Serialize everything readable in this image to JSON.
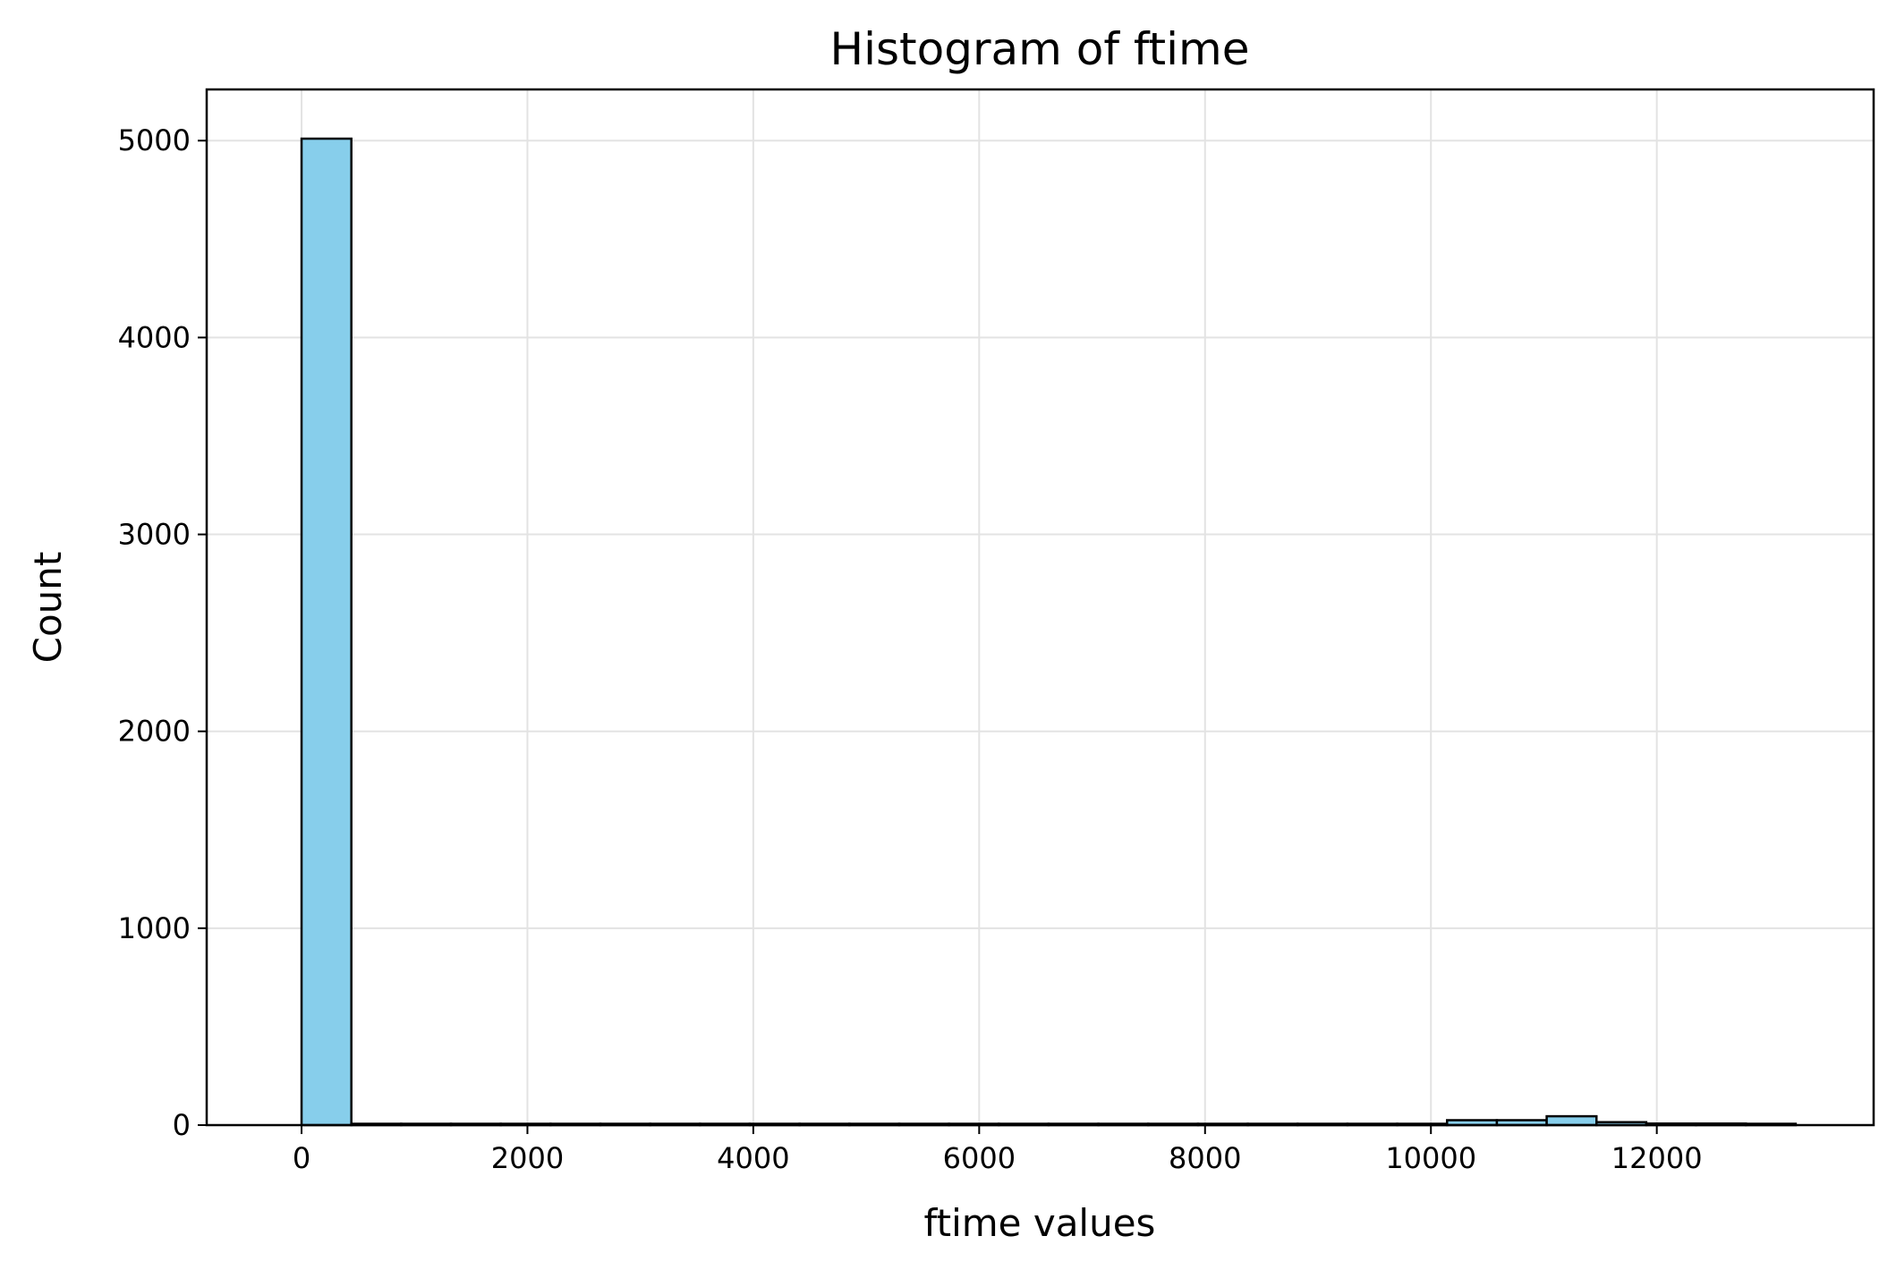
{
  "chart_data": {
    "type": "bar",
    "title": "Histogram of ftime",
    "xlabel": "ftime values",
    "ylabel": "Count",
    "xlim": [
      -840,
      13920
    ],
    "ylim": [
      0,
      5260
    ],
    "xticks": [
      0,
      2000,
      4000,
      6000,
      8000,
      10000,
      12000
    ],
    "xtick_labels": [
      "0",
      "2000",
      "4000",
      "6000",
      "8000",
      "10000",
      "12000"
    ],
    "yticks": [
      0,
      1000,
      2000,
      3000,
      4000,
      5000
    ],
    "ytick_labels": [
      "0",
      "1000",
      "2000",
      "3000",
      "4000",
      "5000"
    ],
    "grid": true,
    "bar_color": "#87ceeb",
    "edge_color": "#000000",
    "bin_start": 0,
    "bin_width": 441,
    "values": [
      5010,
      0,
      0,
      0,
      0,
      0,
      0,
      0,
      0,
      0,
      0,
      0,
      0,
      0,
      0,
      0,
      0,
      0,
      0,
      0,
      0,
      0,
      5,
      25,
      25,
      45,
      15,
      8,
      8,
      3
    ]
  }
}
